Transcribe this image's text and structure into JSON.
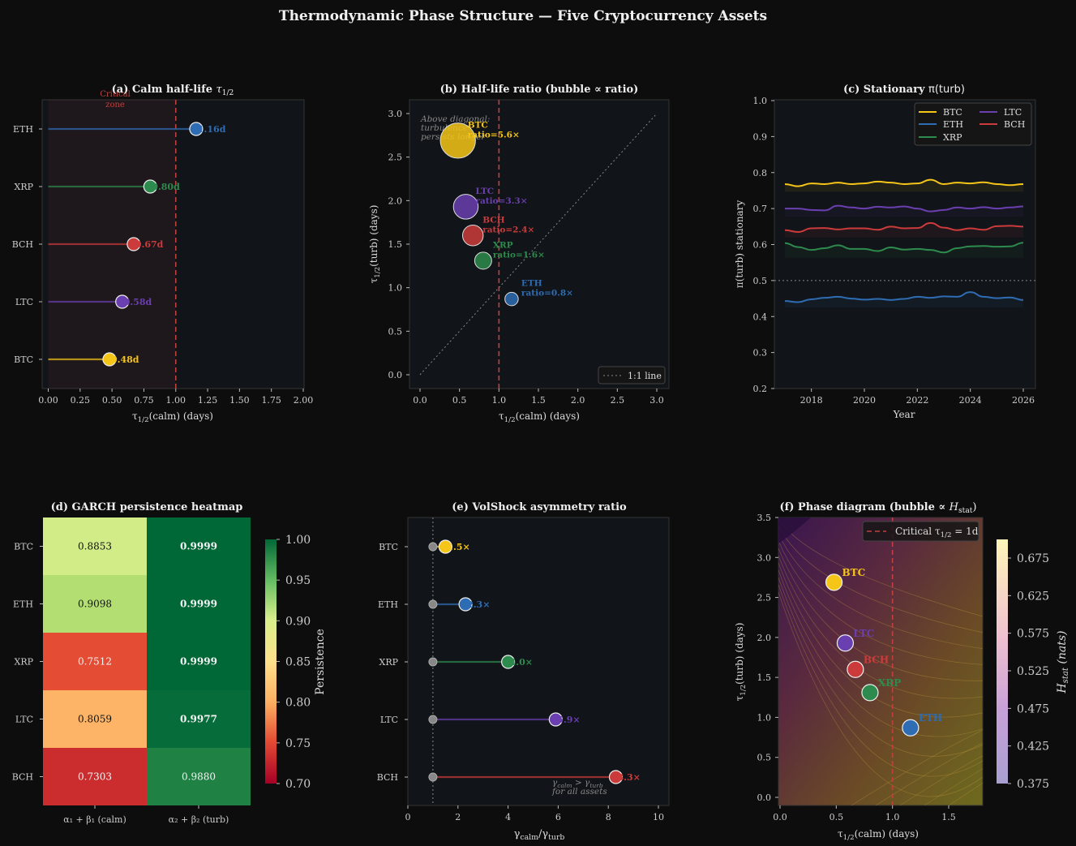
{
  "title": "Thermodynamic Phase Structure — Five Cryptocurrency Assets",
  "colors": {
    "BTC": "#f5c518",
    "ETH": "#2e6db4",
    "XRP": "#2e8b4e",
    "LTC": "#6a3fb0",
    "BCH": "#cc3b3b",
    "critical": "#c04040"
  },
  "chart_data": [
    {
      "id": "a",
      "type": "lollipop",
      "title_prefix": "(a) Calm half-life ",
      "title_math": "τ",
      "title_sub": "1/2",
      "xlabel": "τ",
      "xlabel_sub": "1/2",
      "xlabel_rest": "(calm) (days)",
      "xlim": [
        0,
        2
      ],
      "xticks": [
        "0.00",
        "0.25",
        "0.50",
        "0.75",
        "1.00",
        "1.25",
        "1.50",
        "1.75",
        "2.00"
      ],
      "critical_label_1": "Critical",
      "critical_label_2": "zone",
      "critical_x": 1.0,
      "rows": [
        {
          "asset": "ETH",
          "value": 1.16,
          "label": "1.16d"
        },
        {
          "asset": "XRP",
          "value": 0.8,
          "label": "0.80d"
        },
        {
          "asset": "BCH",
          "value": 0.67,
          "label": "0.67d"
        },
        {
          "asset": "LTC",
          "value": 0.58,
          "label": "0.58d"
        },
        {
          "asset": "BTC",
          "value": 0.48,
          "label": "0.48d"
        }
      ]
    },
    {
      "id": "b",
      "type": "scatter",
      "title": "(b) Half-life ratio (bubble ∝ ratio)",
      "xlabel": "τ",
      "xlabel_sub": "1/2",
      "xlabel_rest": "(calm) (days)",
      "ylabel": "τ",
      "ylabel_sub": "1/2",
      "ylabel_rest": "(turb) (days)",
      "xlim": [
        -0.15,
        3.15
      ],
      "ylim": [
        -0.15,
        3.15
      ],
      "xticks": [
        "0.0",
        "0.5",
        "1.0",
        "1.5",
        "2.0",
        "2.5",
        "3.0"
      ],
      "yticks": [
        "0.0",
        "0.5",
        "1.0",
        "1.5",
        "2.0",
        "2.5",
        "3.0"
      ],
      "annotation_lines": [
        "Above diagonal:",
        "turbulence",
        "persists longer"
      ],
      "legend_label": "1:1 line",
      "points": [
        {
          "asset": "BTC",
          "x": 0.48,
          "y": 2.69,
          "ratio": 5.6,
          "label": "ratio=5.6×"
        },
        {
          "asset": "LTC",
          "x": 0.58,
          "y": 1.93,
          "ratio": 3.3,
          "label": "ratio=3.3×"
        },
        {
          "asset": "BCH",
          "x": 0.67,
          "y": 1.6,
          "ratio": 2.4,
          "label": "ratio=2.4×"
        },
        {
          "asset": "XRP",
          "x": 0.8,
          "y": 1.31,
          "ratio": 1.6,
          "label": "ratio=1.6×"
        },
        {
          "asset": "ETH",
          "x": 1.16,
          "y": 0.87,
          "ratio": 0.8,
          "label": "ratio=0.8×"
        }
      ]
    },
    {
      "id": "c",
      "type": "line",
      "title_prefix": "(c) Stationary ",
      "title_math": "π(turb)",
      "xlabel": "Year",
      "ylabel": "π(turb) stationary",
      "xlim": [
        2016.7,
        2026.5
      ],
      "ylim": [
        0.2,
        1.0
      ],
      "xticks": [
        "2018",
        "2020",
        "2022",
        "2024",
        "2026"
      ],
      "yticks": [
        "0.2",
        "0.3",
        "0.4",
        "0.5",
        "0.6",
        "0.7",
        "0.8",
        "0.9",
        "1.0"
      ],
      "reference_y": 0.5,
      "series": [
        {
          "name": "BTC",
          "x": [
            2017,
            2017.5,
            2018,
            2018.5,
            2019,
            2019.5,
            2020,
            2020.5,
            2021,
            2021.5,
            2022,
            2022.5,
            2023,
            2023.5,
            2024,
            2024.5,
            2025,
            2025.5,
            2026
          ],
          "values": [
            0.768,
            0.762,
            0.77,
            0.768,
            0.772,
            0.768,
            0.77,
            0.775,
            0.772,
            0.768,
            0.77,
            0.78,
            0.768,
            0.772,
            0.77,
            0.773,
            0.768,
            0.765,
            0.768
          ]
        },
        {
          "name": "ETH",
          "x": [
            2017,
            2017.5,
            2018,
            2018.5,
            2019,
            2019.5,
            2020,
            2020.5,
            2021,
            2021.5,
            2022,
            2022.5,
            2023,
            2023.5,
            2024,
            2024.5,
            2025,
            2025.5,
            2026
          ],
          "values": [
            0.443,
            0.44,
            0.448,
            0.452,
            0.455,
            0.45,
            0.447,
            0.449,
            0.446,
            0.449,
            0.455,
            0.452,
            0.456,
            0.455,
            0.468,
            0.455,
            0.451,
            0.453,
            0.446
          ]
        },
        {
          "name": "XRP",
          "x": [
            2017,
            2017.5,
            2018,
            2018.5,
            2019,
            2019.5,
            2020,
            2020.5,
            2021,
            2021.5,
            2022,
            2022.5,
            2023,
            2023.5,
            2024,
            2024.5,
            2025,
            2025.5,
            2026
          ],
          "values": [
            0.604,
            0.593,
            0.585,
            0.59,
            0.598,
            0.588,
            0.588,
            0.582,
            0.592,
            0.586,
            0.588,
            0.585,
            0.578,
            0.59,
            0.595,
            0.596,
            0.594,
            0.595,
            0.605
          ]
        },
        {
          "name": "LTC",
          "x": [
            2017,
            2017.5,
            2018,
            2018.5,
            2019,
            2019.5,
            2020,
            2020.5,
            2021,
            2021.5,
            2022,
            2022.5,
            2023,
            2023.5,
            2024,
            2024.5,
            2025,
            2025.5,
            2026
          ],
          "values": [
            0.7,
            0.7,
            0.696,
            0.695,
            0.708,
            0.703,
            0.7,
            0.705,
            0.703,
            0.706,
            0.7,
            0.692,
            0.696,
            0.703,
            0.7,
            0.704,
            0.7,
            0.703,
            0.706
          ]
        },
        {
          "name": "BCH",
          "x": [
            2017,
            2017.5,
            2018,
            2018.5,
            2019,
            2019.5,
            2020,
            2020.5,
            2021,
            2021.5,
            2022,
            2022.5,
            2023,
            2023.5,
            2024,
            2024.5,
            2025,
            2025.5,
            2026
          ],
          "values": [
            0.64,
            0.635,
            0.645,
            0.646,
            0.642,
            0.645,
            0.645,
            0.641,
            0.65,
            0.645,
            0.646,
            0.66,
            0.647,
            0.64,
            0.645,
            0.641,
            0.651,
            0.652,
            0.65
          ]
        }
      ],
      "legend_order": [
        "BTC",
        "ETH",
        "XRP",
        "LTC",
        "BCH"
      ]
    },
    {
      "id": "d",
      "type": "heatmap",
      "title": "(d) GARCH persistence heatmap",
      "rows": [
        "BTC",
        "ETH",
        "XRP",
        "LTC",
        "BCH"
      ],
      "columns": [
        "α₁ + β₁ (calm)",
        "α₂ + β₂ (turb)"
      ],
      "values": [
        [
          0.8853,
          0.9999
        ],
        [
          0.9098,
          0.9999
        ],
        [
          0.7512,
          0.9999
        ],
        [
          0.8059,
          0.9977
        ],
        [
          0.7303,
          0.988
        ]
      ],
      "cell_labels": [
        [
          "0.8853",
          "0.9999"
        ],
        [
          "0.9098",
          "0.9999"
        ],
        [
          "0.7512",
          "0.9999"
        ],
        [
          "0.8059",
          "0.9977"
        ],
        [
          "0.7303",
          "0.9880"
        ]
      ],
      "colorbar_label": "Persistence",
      "colorbar_range": [
        0.7,
        1.0
      ],
      "colorbar_ticks": [
        "1.00",
        "0.95",
        "0.90",
        "0.85",
        "0.80",
        "0.75",
        "0.70"
      ]
    },
    {
      "id": "e",
      "type": "lollipop",
      "title": "(e) VolShock asymmetry ratio",
      "xlabel": "γ",
      "xlabel_sub1": "calm",
      "xlabel_slash": "/γ",
      "xlabel_sub2": "turb",
      "xlim": [
        0,
        10.5
      ],
      "xticks": [
        "0",
        "2",
        "4",
        "6",
        "8",
        "10"
      ],
      "reference_x": 1.0,
      "annotation_1": "γ",
      "annotation_1_sub1": "calm",
      "annotation_1_mid": " > γ",
      "annotation_1_sub2": "turb",
      "annotation_2": "for all assets",
      "rows": [
        {
          "asset": "BTC",
          "value": 1.5,
          "label": "1.5×"
        },
        {
          "asset": "ETH",
          "value": 2.3,
          "label": "2.3×"
        },
        {
          "asset": "XRP",
          "value": 4.0,
          "label": "4.0×"
        },
        {
          "asset": "LTC",
          "value": 5.9,
          "label": "5.9×"
        },
        {
          "asset": "BCH",
          "value": 8.3,
          "label": "8.3×"
        }
      ]
    },
    {
      "id": "f",
      "type": "scatter",
      "title_prefix": "(f) Phase diagram (bubble ∝ ",
      "title_math": "H",
      "title_sub": "stat",
      "title_suffix": ")",
      "xlabel": "τ",
      "xlabel_sub": "1/2",
      "xlabel_rest": "(calm) (days)",
      "ylabel": "τ",
      "ylabel_sub": "1/2",
      "ylabel_rest": "(turb) (days)",
      "xlim": [
        -0.05,
        1.8
      ],
      "ylim": [
        -0.1,
        3.5
      ],
      "xticks": [
        "0.0",
        "0.5",
        "1.0",
        "1.5"
      ],
      "yticks": [
        "0.0",
        "0.5",
        "1.0",
        "1.5",
        "2.0",
        "2.5",
        "3.0",
        "3.5"
      ],
      "legend_label_prefix": "Critical ",
      "legend_label_math": "τ",
      "legend_label_sub": "1/2",
      "legend_label_suffix": " = 1d",
      "critical_x": 1.0,
      "colorbar_label": "H",
      "colorbar_label_sub": "stat",
      "colorbar_label_rest": " (nats)",
      "colorbar_ticks": [
        "0.675",
        "0.625",
        "0.575",
        "0.525",
        "0.475",
        "0.425",
        "0.375"
      ],
      "points": [
        {
          "asset": "BTC",
          "x": 0.48,
          "y": 2.69
        },
        {
          "asset": "LTC",
          "x": 0.58,
          "y": 1.93
        },
        {
          "asset": "BCH",
          "x": 0.67,
          "y": 1.6
        },
        {
          "asset": "XRP",
          "x": 0.8,
          "y": 1.31
        },
        {
          "asset": "ETH",
          "x": 1.16,
          "y": 0.87
        }
      ]
    }
  ]
}
